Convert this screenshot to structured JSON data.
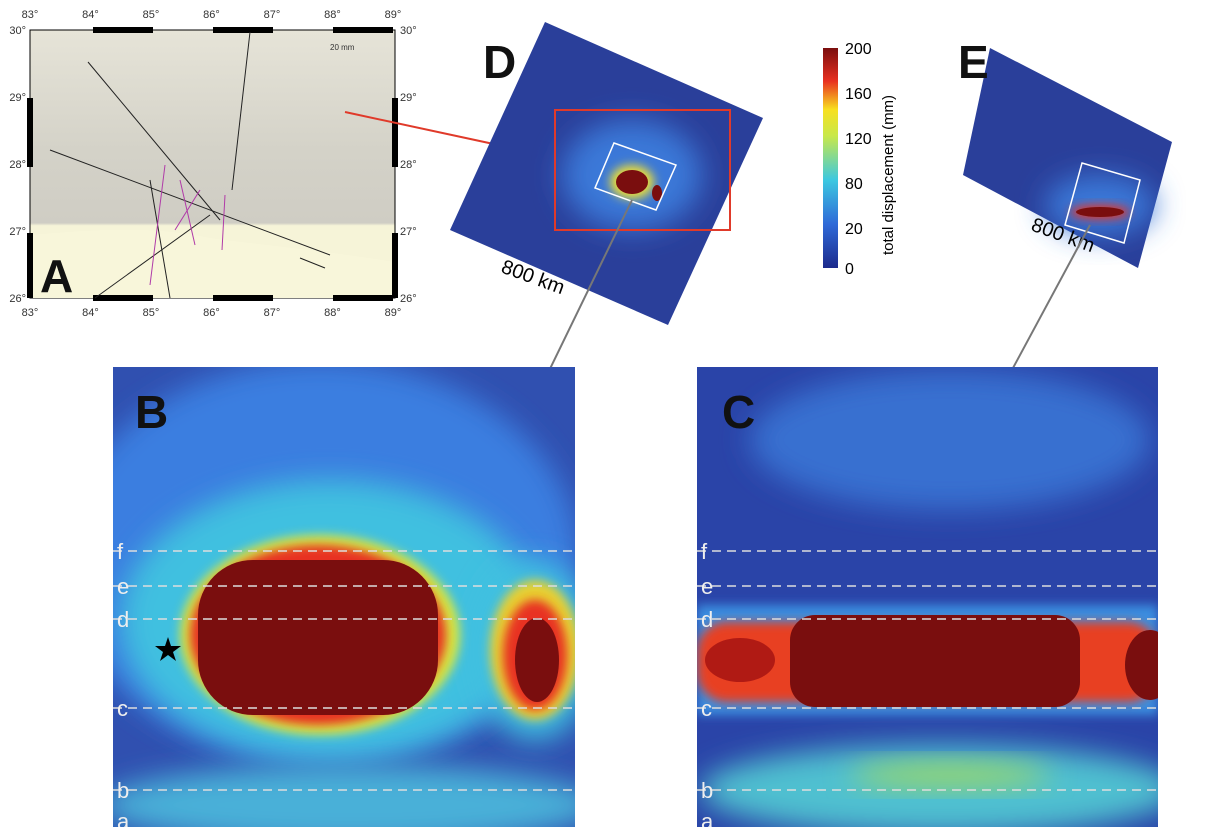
{
  "panels": {
    "a": "A",
    "b": "B",
    "c": "C",
    "d": "D",
    "e": "E"
  },
  "map": {
    "x_labels": [
      "83°",
      "84°",
      "85°",
      "86°",
      "87°",
      "88°",
      "89°"
    ],
    "y_labels": [
      "30°",
      "29°",
      "28°",
      "27°",
      "26°"
    ],
    "scale": "20 mm"
  },
  "scale_bars": {
    "d": "800 km",
    "e": "800 km"
  },
  "colorbar": {
    "label": "total displacement (mm)",
    "ticks": [
      200,
      160,
      120,
      80,
      20,
      0
    ]
  },
  "profile_lines": [
    "f",
    "e",
    "d",
    "c",
    "b",
    "a"
  ]
}
